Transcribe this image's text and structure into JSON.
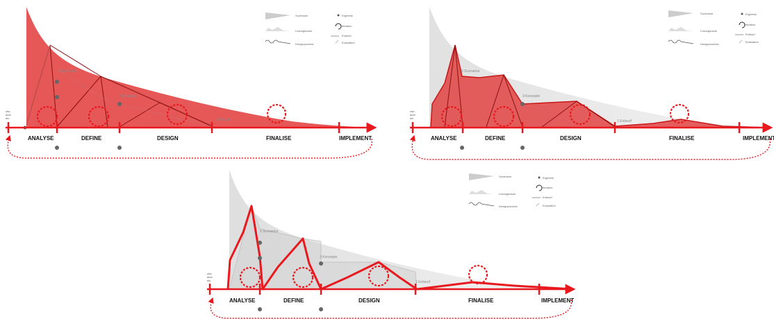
{
  "phases": [
    "ANALYSE",
    "DEFINE",
    "DESIGN",
    "FINALISE",
    "IMPLEMENT"
  ],
  "stage_labels": {
    "scenarios": "5 Scenarios",
    "concepts": "3 Konzepte",
    "draft": "1 Entwurf"
  },
  "start_label": [
    "cha",
    "duct",
    "etc"
  ],
  "legend": {
    "search_space": "Suchraum",
    "solution_space": "Lösungsraum",
    "design_process": "Designprozess",
    "result": "Ergebnis",
    "iteration": "Iteration",
    "draft": "Entwurf",
    "evaluation": "Evaluation"
  },
  "colors": {
    "accent": "#e8191e",
    "fill_red": "#e23a3a",
    "fill_grey": "#dcdcdc",
    "dot": "#666666"
  }
}
